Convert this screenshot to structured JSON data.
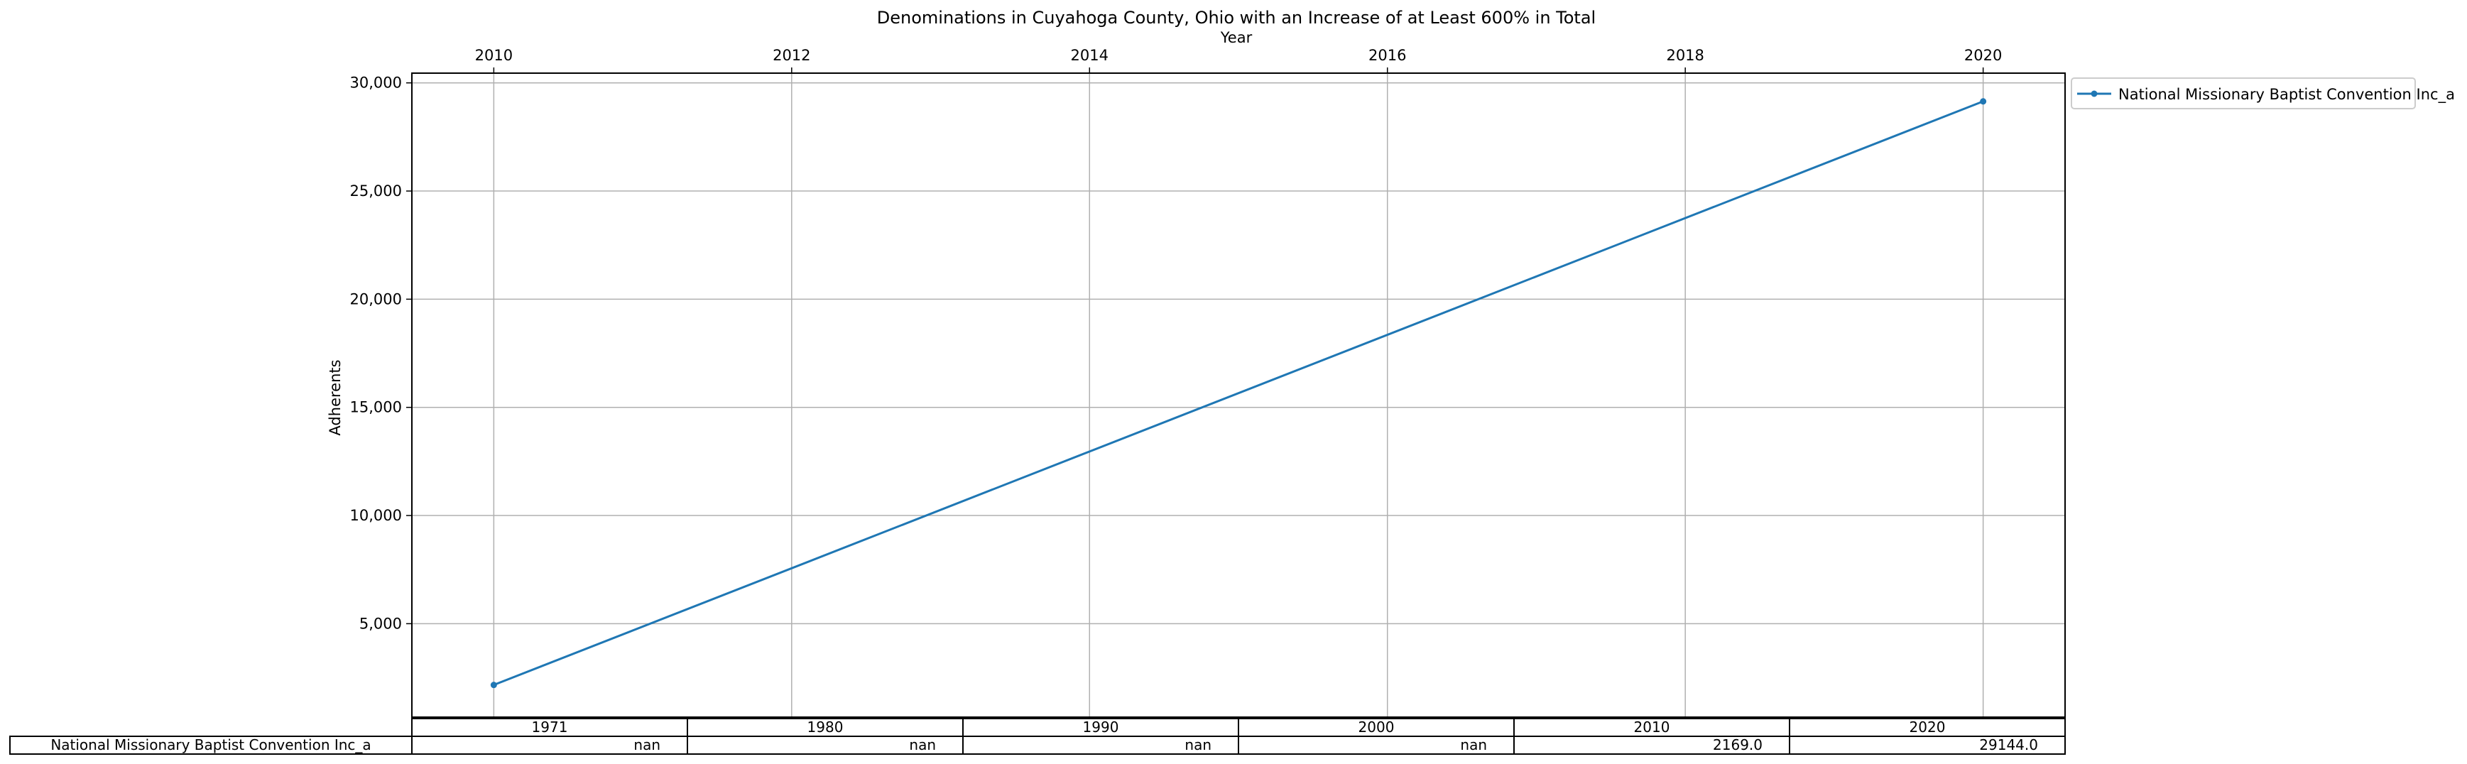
{
  "chart_data": {
    "type": "line",
    "title": "Denominations in Cuyahoga County, Ohio with an Increase of at Least 600% in Total",
    "xlabel": "Year",
    "ylabel": "Adherents",
    "x_axis_position": "top",
    "xlim": [
      2009.45,
      2020.55
    ],
    "ylim": [
      680,
      30450
    ],
    "x_ticks": [
      2010,
      2012,
      2014,
      2016,
      2018,
      2020
    ],
    "y_ticks": [
      5000,
      10000,
      15000,
      20000,
      25000,
      30000
    ],
    "y_tick_labels": [
      "5,000",
      "10,000",
      "15,000",
      "20,000",
      "25,000",
      "30,000"
    ],
    "grid": true,
    "legend_position": "upper-right-outside",
    "series": [
      {
        "name": "National Missionary Baptist Convention Inc_a",
        "color": "#1f77b4",
        "marker": "dot",
        "x": [
          2010,
          2020
        ],
        "y": [
          2169.0,
          29144.0
        ]
      }
    ],
    "table": {
      "columns": [
        "1971",
        "1980",
        "1990",
        "2000",
        "2010",
        "2020"
      ],
      "rows": [
        {
          "label": "National Missionary Baptist Convention Inc_a",
          "cells": [
            "nan",
            "nan",
            "nan",
            "nan",
            "2169.0",
            "29144.0"
          ]
        }
      ]
    }
  }
}
